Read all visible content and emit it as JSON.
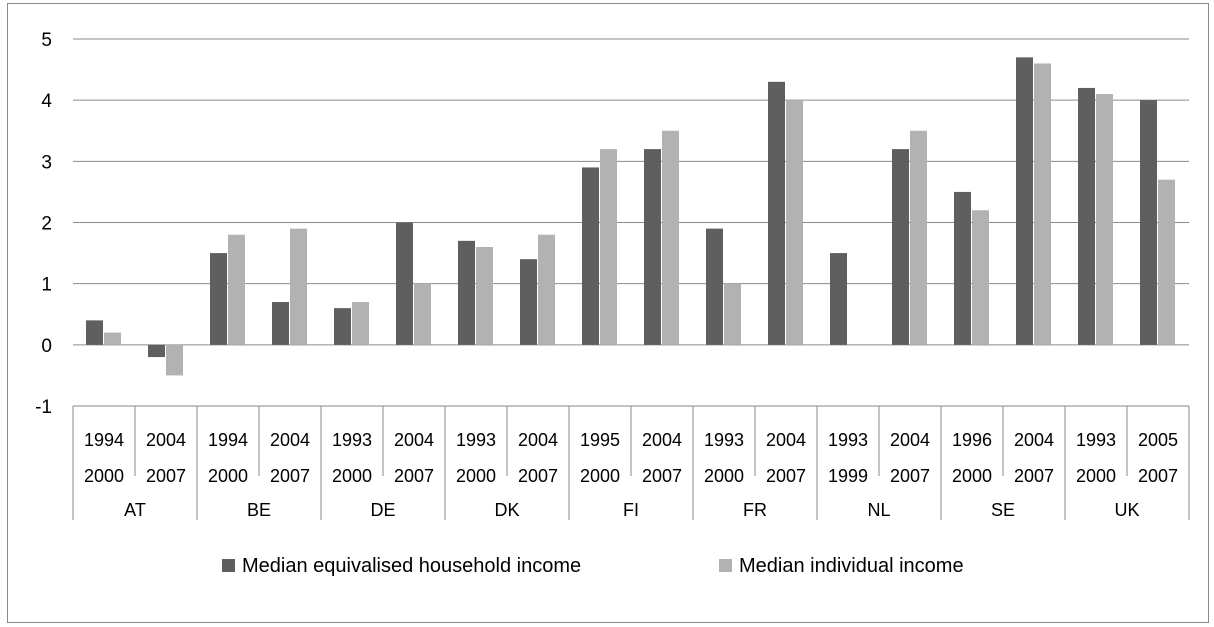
{
  "chart_data": {
    "type": "bar",
    "title": "",
    "xlabel": "",
    "ylabel": "",
    "ylim": [
      -1,
      5
    ],
    "yticks": [
      -1,
      0,
      1,
      2,
      3,
      4,
      5
    ],
    "grid": true,
    "legend_position": "bottom",
    "groups": [
      {
        "name": "AT",
        "periods": [
          {
            "start": "1994",
            "end": "2000"
          },
          {
            "start": "2004",
            "end": "2007"
          }
        ]
      },
      {
        "name": "BE",
        "periods": [
          {
            "start": "1994",
            "end": "2000"
          },
          {
            "start": "2004",
            "end": "2007"
          }
        ]
      },
      {
        "name": "DE",
        "periods": [
          {
            "start": "1993",
            "end": "2000"
          },
          {
            "start": "2004",
            "end": "2007"
          }
        ]
      },
      {
        "name": "DK",
        "periods": [
          {
            "start": "1993",
            "end": "2000"
          },
          {
            "start": "2004",
            "end": "2007"
          }
        ]
      },
      {
        "name": "FI",
        "periods": [
          {
            "start": "1995",
            "end": "2000"
          },
          {
            "start": "2004",
            "end": "2007"
          }
        ]
      },
      {
        "name": "FR",
        "periods": [
          {
            "start": "1993",
            "end": "2000"
          },
          {
            "start": "2004",
            "end": "2007"
          }
        ]
      },
      {
        "name": "NL",
        "periods": [
          {
            "start": "1993",
            "end": "1999"
          },
          {
            "start": "2004",
            "end": "2007"
          }
        ]
      },
      {
        "name": "SE",
        "periods": [
          {
            "start": "1996",
            "end": "2000"
          },
          {
            "start": "2004",
            "end": "2007"
          }
        ]
      },
      {
        "name": "UK",
        "periods": [
          {
            "start": "1993",
            "end": "2000"
          },
          {
            "start": "2005",
            "end": "2007"
          }
        ]
      }
    ],
    "series": [
      {
        "name": "Median equivalised household income",
        "color": "#5f5f5f",
        "values": [
          0.4,
          -0.2,
          1.5,
          0.7,
          0.6,
          2.0,
          1.7,
          1.4,
          2.9,
          3.2,
          1.9,
          4.3,
          1.5,
          3.2,
          2.5,
          4.7,
          4.2,
          4.0
        ]
      },
      {
        "name": "Median individual income",
        "color": "#b2b2b2",
        "values": [
          0.2,
          -0.5,
          1.8,
          1.9,
          0.7,
          1.0,
          1.6,
          1.8,
          3.2,
          3.5,
          1.0,
          4.0,
          null,
          3.5,
          2.2,
          4.6,
          4.1,
          2.7
        ]
      }
    ]
  }
}
